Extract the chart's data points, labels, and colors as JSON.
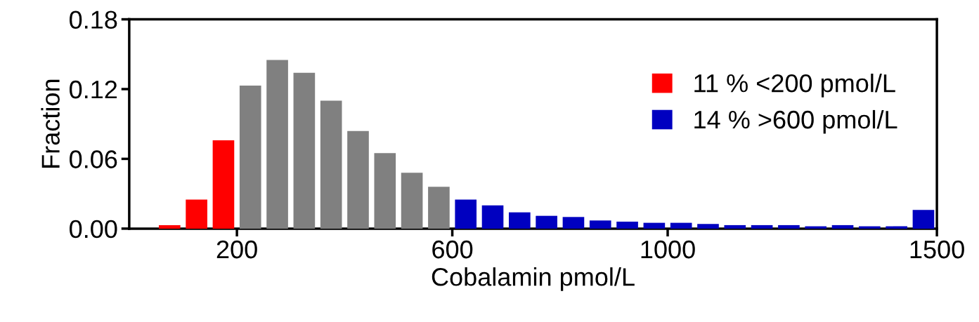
{
  "chart_data": {
    "type": "histogram",
    "xlabel": "Cobalamin pmol/L",
    "ylabel": "Fraction",
    "bins": [
      50,
      100,
      150,
      200,
      250,
      300,
      350,
      400,
      450,
      500,
      550,
      600,
      650,
      700,
      750,
      800,
      850,
      900,
      950,
      1000,
      1050,
      1100,
      1150,
      1200,
      1250,
      1300,
      1350,
      1400,
      1450,
      1500
    ],
    "series": [
      {
        "name": "11 % <200 pmol/L",
        "color": "#ff0000",
        "values": [
          0.003,
          0.025,
          0.076,
          null,
          null,
          null,
          null,
          null,
          null,
          null,
          null,
          null,
          null,
          null,
          null,
          null,
          null,
          null,
          null,
          null,
          null,
          null,
          null,
          null,
          null,
          null,
          null,
          null,
          null
        ]
      },
      {
        "color": "#808080",
        "values": [
          null,
          null,
          null,
          0.123,
          0.145,
          0.134,
          0.11,
          0.084,
          0.065,
          0.048,
          0.036,
          null,
          null,
          null,
          null,
          null,
          null,
          null,
          null,
          null,
          null,
          null,
          null,
          null,
          null,
          null,
          null,
          null,
          null
        ]
      },
      {
        "name": "14 % >600 pmol/L",
        "color": "#0000c0",
        "values": [
          null,
          null,
          null,
          null,
          null,
          null,
          null,
          null,
          null,
          null,
          null,
          0.025,
          0.02,
          0.014,
          0.011,
          0.01,
          0.007,
          0.006,
          0.005,
          0.005,
          0.004,
          0.003,
          0.003,
          0.003,
          0.002,
          0.003,
          0.002,
          0.002,
          0.016
        ]
      }
    ],
    "xlim": [
      0,
      1500
    ],
    "xticks": [
      200,
      600,
      1000,
      1500
    ],
    "ylim": [
      0,
      0.18
    ],
    "yticks": [
      {
        "value": 0,
        "label": "0.00"
      },
      {
        "value": 0.06,
        "label": "0.06"
      },
      {
        "value": 0.12,
        "label": "0.12"
      },
      {
        "value": 0.18,
        "label": "0.18"
      }
    ],
    "grid": false,
    "legend": "top right"
  }
}
